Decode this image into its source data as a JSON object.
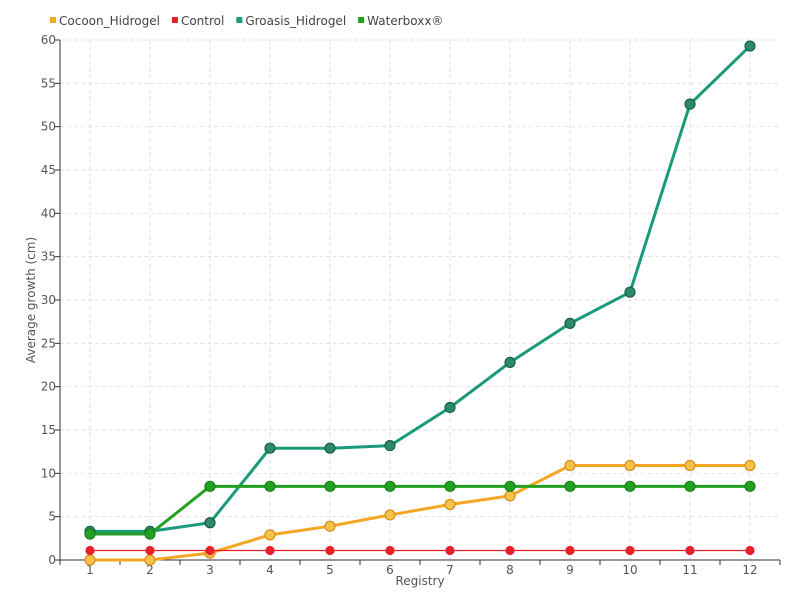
{
  "chart_data": {
    "type": "line",
    "title": "",
    "xlabel": "Registry",
    "ylabel": "Average growth (cm)",
    "categories": [
      "1",
      "2",
      "3",
      "4",
      "5",
      "6",
      "7",
      "8",
      "9",
      "10",
      "11",
      "12"
    ],
    "ylim": [
      0,
      60
    ],
    "yticks": [
      0,
      5,
      10,
      15,
      20,
      25,
      30,
      35,
      40,
      45,
      50,
      55,
      60
    ],
    "grid": true,
    "legend_position": "top-left",
    "series": [
      {
        "name": "Cocoon_Hidrogel",
        "color": "#f5a623",
        "marker_fill": "#f5c24a",
        "marker_stroke": "#d98c1a",
        "values": [
          0,
          0,
          0.8,
          2.9,
          3.9,
          5.2,
          6.4,
          7.4,
          10.9,
          10.9,
          10.9,
          10.9
        ]
      },
      {
        "name": "Control",
        "color": "#e8202a",
        "marker_fill": "#e8202a",
        "marker_stroke": "#e8202a",
        "values": [
          1.1,
          1.1,
          1.1,
          1.1,
          1.1,
          1.1,
          1.1,
          1.1,
          1.1,
          1.1,
          1.1,
          1.1
        ]
      },
      {
        "name": "Groasis_Hidrogel",
        "color": "#1a9a7a",
        "marker_fill": "#2e8b6a",
        "marker_stroke": "#1a5e4a",
        "values": [
          3.3,
          3.3,
          4.3,
          12.9,
          12.9,
          13.2,
          17.6,
          22.8,
          27.3,
          30.9,
          52.6,
          59.3
        ]
      },
      {
        "name": "Waterboxx®",
        "color": "#22a022",
        "marker_fill": "#22a022",
        "marker_stroke": "#178017",
        "values": [
          3.0,
          3.0,
          8.5,
          8.5,
          8.5,
          8.5,
          8.5,
          8.5,
          8.5,
          8.5,
          8.5,
          8.5
        ]
      }
    ]
  }
}
